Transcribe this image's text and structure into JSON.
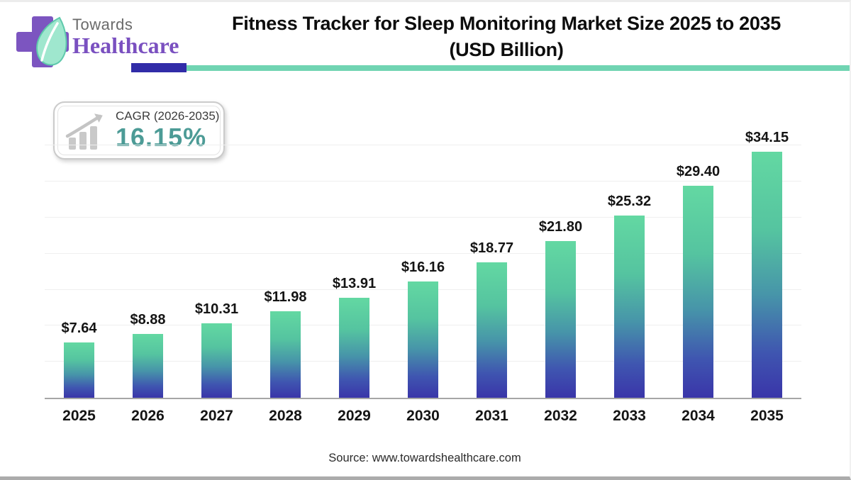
{
  "logo": {
    "towards": "Towards",
    "healthcare": "Healthcare"
  },
  "header": {
    "title_line1": "Fitness Tracker for Sleep Monitoring Market Size 2025 to 2035",
    "title_line2": "(USD Billion)"
  },
  "cagr_badge": {
    "label": "CAGR (2026-2035)",
    "value": "16.15%"
  },
  "chart_data": {
    "type": "bar",
    "title": "Fitness Tracker for Sleep Monitoring Market Size 2025 to 2035 (USD Billion)",
    "xlabel": "",
    "ylabel": "",
    "categories": [
      "2025",
      "2026",
      "2027",
      "2028",
      "2029",
      "2030",
      "2031",
      "2032",
      "2033",
      "2034",
      "2035"
    ],
    "values": [
      7.64,
      8.88,
      10.31,
      11.98,
      13.91,
      16.16,
      18.77,
      21.8,
      25.32,
      29.4,
      34.15
    ],
    "value_labels": [
      "$7.64",
      "$8.88",
      "$10.31",
      "$11.98",
      "$13.91",
      "$16.16",
      "$18.77",
      "$21.80",
      "$25.32",
      "$29.40",
      "$34.15"
    ],
    "unit": "USD Billion",
    "ylim": [
      0,
      35
    ],
    "gridline_step": 5,
    "grid": true,
    "legend": "none",
    "bar_gradient_top": "#63d8a2",
    "bar_gradient_bottom": "#3a35a9"
  },
  "footer": {
    "source": "Source: www.towardshealthcare.com"
  },
  "colors": {
    "accent_purple": "#7b55be",
    "divider_indigo": "#312ca8",
    "divider_teal": "#70d4b2",
    "cagr_value_teal": "#4c9b96",
    "title_text": "#0d0d0d",
    "axis_line": "#a6a6a6"
  }
}
